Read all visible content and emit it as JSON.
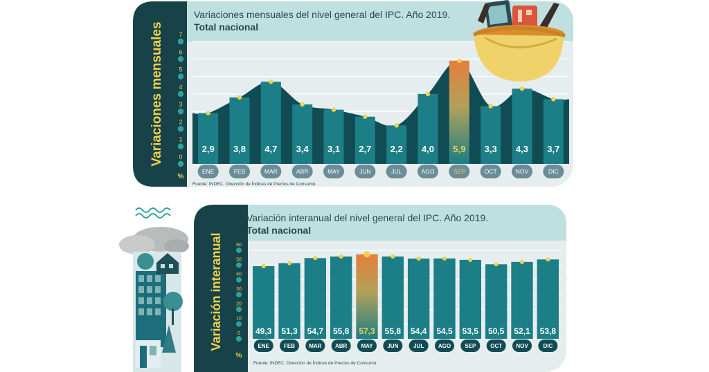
{
  "colors": {
    "teal": "#1c7e86",
    "teal_dark": "#114c54",
    "panel_light": "#e5edee",
    "header_light": "#bfe0de",
    "sidebar_dark": "#17424a",
    "title_text": "#1f4a52",
    "yellow": "#f1d24a",
    "highlight_orange": "#e67f3a",
    "month_pill": "#6b8c99"
  },
  "chart_data": [
    {
      "type": "area",
      "title": "Variaciones mensuales del nivel general del IPC. Año 2019.",
      "subtitle": "Total nacional",
      "ylabel": "Variaciones mensuales",
      "unit_label": "%",
      "categories": [
        "ENE",
        "FEB",
        "MAR",
        "ABR",
        "MAY",
        "JUN",
        "JUL",
        "AGO",
        "SEP",
        "OCT",
        "NOV",
        "DIC"
      ],
      "values": [
        2.9,
        3.8,
        4.7,
        3.4,
        3.1,
        2.7,
        2.2,
        4.0,
        5.9,
        3.3,
        4.3,
        3.7
      ],
      "value_labels": [
        "2,9",
        "3,8",
        "4,7",
        "3,4",
        "3,1",
        "2,7",
        "2,2",
        "4,0",
        "5,9",
        "3,3",
        "4,3",
        "3,7"
      ],
      "yticks": [
        "0",
        "1",
        "2",
        "3",
        "4",
        "5",
        "6",
        "7"
      ],
      "ylim": [
        0,
        7
      ],
      "highlight": "SEP",
      "source": "Fuente: INDEC. Dirección de Índices de Precios de Consumo."
    },
    {
      "type": "bar",
      "title": "Variación interanual del nivel general del IPC. Año 2019.",
      "subtitle": "Total nacional",
      "ylabel": "Variación interanual",
      "unit_label": "%",
      "categories": [
        "ENE",
        "FEB",
        "MAR",
        "ABR",
        "MAY",
        "JUN",
        "JUL",
        "AGO",
        "SEP",
        "OCT",
        "NOV",
        "DIC"
      ],
      "values": [
        49.3,
        51.3,
        54.7,
        55.8,
        57.3,
        55.8,
        54.4,
        54.5,
        53.5,
        50.5,
        52.1,
        53.8
      ],
      "value_labels": [
        "49,3",
        "51,3",
        "54,7",
        "55,8",
        "57,3",
        "55,8",
        "54,4",
        "54,5",
        "53,5",
        "50,5",
        "52,1",
        "53,8"
      ],
      "yticks": [
        "0",
        "10",
        "20",
        "30",
        "40",
        "50",
        "60"
      ],
      "ylim": [
        0,
        60
      ],
      "highlight": "MAY",
      "source": "Fuente: INDEC. Dirección de Índices de Precios de Consumo."
    }
  ]
}
